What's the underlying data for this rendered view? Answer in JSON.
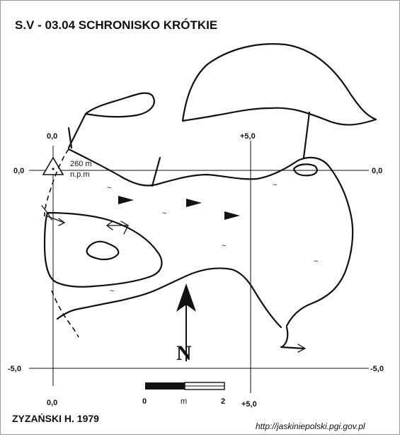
{
  "map": {
    "title": "S.V - 03.04  SCHRONISKO KRÓTKIE",
    "author": "ZYZAŃSKI H. 1979",
    "credit": "http://jaskiniepolski.pgi.gov.pl",
    "benchmark": {
      "altitude": "260 m",
      "unit": "n.p.m"
    },
    "north_label": "N",
    "scale_bar": {
      "start_label": "0",
      "unit_label": "m",
      "end_label": "2"
    },
    "grid_labels": {
      "top_left_x": "0,0",
      "top_right_x": "+5,0",
      "left_y0": "0,0",
      "right_y0": "0,0",
      "left_y_minus5": "-5,0",
      "right_y_minus5": "-5,0",
      "bottom_x0": "0,0",
      "bottom_x5": "+5,0"
    },
    "colors": {
      "ink": "#111111",
      "background": "#ffffff"
    },
    "icons": [
      "benchmark-triangle-icon",
      "north-arrow-icon",
      "flow-arrow-icon",
      "water-tilde-icon"
    ]
  }
}
